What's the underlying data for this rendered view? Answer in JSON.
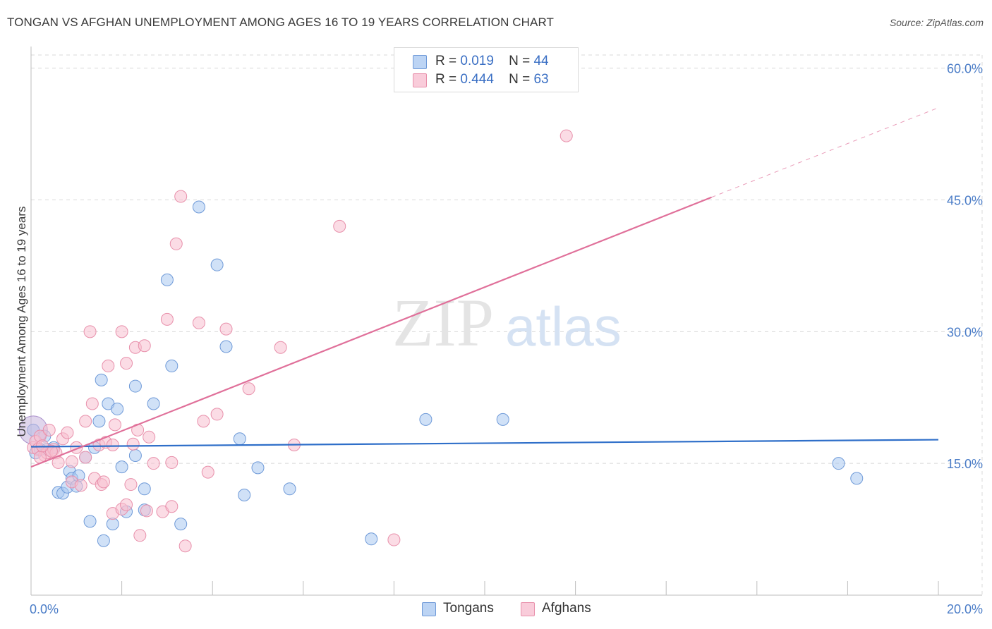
{
  "title": "TONGAN VS AFGHAN UNEMPLOYMENT AMONG AGES 16 TO 19 YEARS CORRELATION CHART",
  "source": "Source: ZipAtlas.com",
  "watermark": {
    "zip": "ZIP",
    "atlas": "atlas"
  },
  "legend": {
    "tongans": {
      "r_label": "R =",
      "r_value": "0.019",
      "n_label": "N =",
      "n_value": "44"
    },
    "afghans": {
      "r_label": "R =",
      "r_value": "0.444",
      "n_label": "N =",
      "n_value": "63"
    }
  },
  "bottom_legend": {
    "tongans": "Tongans",
    "afghans": "Afghans"
  },
  "colors": {
    "tongan_fill": "#a9c8f0",
    "tongan_stroke": "#6f9ad8",
    "tongan_line": "#2f6fc9",
    "afghan_fill": "#f7bfd0",
    "afghan_stroke": "#e890ab",
    "afghan_line": "#e0709a",
    "grid": "#d8d8d8",
    "tick_text": "#4a7cc7"
  },
  "chart_data": {
    "type": "scatter",
    "title": "TONGAN VS AFGHAN UNEMPLOYMENT AMONG AGES 16 TO 19 YEARS CORRELATION CHART",
    "ylabel": "Unemployment Among Ages 16 to 19 years",
    "xlabel": "",
    "xlim": [
      0,
      20
    ],
    "ylim": [
      0,
      61.5
    ],
    "x_tick_labels": [
      "0.0%",
      "20.0%"
    ],
    "y_ticks": [
      15,
      30,
      45,
      60
    ],
    "y_tick_labels": [
      "15.0%",
      "30.0%",
      "45.0%",
      "60.0%"
    ],
    "grid": true,
    "series": [
      {
        "name": "Tongans",
        "points": [
          [
            0.05,
            18.8
          ],
          [
            0.1,
            16.2
          ],
          [
            0.2,
            16.6
          ],
          [
            0.3,
            18.1
          ],
          [
            0.35,
            16.6
          ],
          [
            0.5,
            16.8
          ],
          [
            0.6,
            11.7
          ],
          [
            0.7,
            11.6
          ],
          [
            0.8,
            12.3
          ],
          [
            0.85,
            14.1
          ],
          [
            0.9,
            13.3
          ],
          [
            1.0,
            12.4
          ],
          [
            1.05,
            13.6
          ],
          [
            1.2,
            15.7
          ],
          [
            1.3,
            8.4
          ],
          [
            1.4,
            16.8
          ],
          [
            1.5,
            19.8
          ],
          [
            1.55,
            24.5
          ],
          [
            1.6,
            6.2
          ],
          [
            1.7,
            21.8
          ],
          [
            1.8,
            8.1
          ],
          [
            1.9,
            21.2
          ],
          [
            2.0,
            14.6
          ],
          [
            2.1,
            9.5
          ],
          [
            2.3,
            23.8
          ],
          [
            2.3,
            15.9
          ],
          [
            2.5,
            12.1
          ],
          [
            2.5,
            9.7
          ],
          [
            2.7,
            21.8
          ],
          [
            3.0,
            35.9
          ],
          [
            3.1,
            26.1
          ],
          [
            3.3,
            8.1
          ],
          [
            3.7,
            44.2
          ],
          [
            4.1,
            37.6
          ],
          [
            4.3,
            28.3
          ],
          [
            4.6,
            17.8
          ],
          [
            4.7,
            11.4
          ],
          [
            5.0,
            14.5
          ],
          [
            5.7,
            12.1
          ],
          [
            7.5,
            6.4
          ],
          [
            8.7,
            20.0
          ],
          [
            10.4,
            20.0
          ],
          [
            17.8,
            15.0
          ],
          [
            18.2,
            13.3
          ]
        ]
      },
      {
        "name": "Afghans",
        "points": [
          [
            0.05,
            16.8
          ],
          [
            0.1,
            17.5
          ],
          [
            0.15,
            16.6
          ],
          [
            0.2,
            18.1
          ],
          [
            0.3,
            15.9
          ],
          [
            0.35,
            16.2
          ],
          [
            0.4,
            18.8
          ],
          [
            0.5,
            16.6
          ],
          [
            0.55,
            16.2
          ],
          [
            0.6,
            15.1
          ],
          [
            0.7,
            17.8
          ],
          [
            0.8,
            18.5
          ],
          [
            0.9,
            12.9
          ],
          [
            0.9,
            15.2
          ],
          [
            1.0,
            16.8
          ],
          [
            1.1,
            12.5
          ],
          [
            1.2,
            15.7
          ],
          [
            1.2,
            19.8
          ],
          [
            1.3,
            30.0
          ],
          [
            1.35,
            21.8
          ],
          [
            1.4,
            13.3
          ],
          [
            1.5,
            17.1
          ],
          [
            1.55,
            12.6
          ],
          [
            1.6,
            12.9
          ],
          [
            1.65,
            17.4
          ],
          [
            1.7,
            26.1
          ],
          [
            1.8,
            9.3
          ],
          [
            1.8,
            17.1
          ],
          [
            1.85,
            19.4
          ],
          [
            2.0,
            9.8
          ],
          [
            2.0,
            30.0
          ],
          [
            2.1,
            10.3
          ],
          [
            2.1,
            26.4
          ],
          [
            2.2,
            12.6
          ],
          [
            2.25,
            17.2
          ],
          [
            2.3,
            28.2
          ],
          [
            2.35,
            18.8
          ],
          [
            2.4,
            6.8
          ],
          [
            2.5,
            28.4
          ],
          [
            2.55,
            9.6
          ],
          [
            2.6,
            18.0
          ],
          [
            2.7,
            15.0
          ],
          [
            2.9,
            9.5
          ],
          [
            3.0,
            31.4
          ],
          [
            3.1,
            15.1
          ],
          [
            3.1,
            10.1
          ],
          [
            3.2,
            40.0
          ],
          [
            3.3,
            45.4
          ],
          [
            3.4,
            5.6
          ],
          [
            3.7,
            31.0
          ],
          [
            3.8,
            19.8
          ],
          [
            3.9,
            14.0
          ],
          [
            4.1,
            20.6
          ],
          [
            4.3,
            30.3
          ],
          [
            4.8,
            23.5
          ],
          [
            5.5,
            28.2
          ],
          [
            5.8,
            17.1
          ],
          [
            6.8,
            42.0
          ],
          [
            8.0,
            6.3
          ],
          [
            11.8,
            52.3
          ],
          [
            0.2,
            15.7
          ],
          [
            0.45,
            16.4
          ],
          [
            0.25,
            17.0
          ]
        ]
      }
    ],
    "trendlines": [
      {
        "series": "Tongans",
        "from": [
          0,
          16.9
        ],
        "to": [
          20,
          17.7
        ],
        "style": "solid"
      },
      {
        "series": "Afghans",
        "from": [
          0,
          14.6
        ],
        "to": [
          15,
          45.3
        ],
        "style": "solid"
      },
      {
        "series": "Afghans",
        "from": [
          15,
          45.3
        ],
        "to": [
          20,
          55.5
        ],
        "style": "dashed"
      }
    ]
  }
}
